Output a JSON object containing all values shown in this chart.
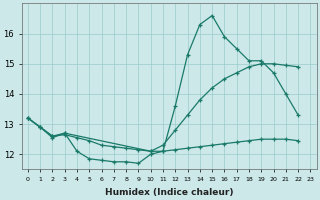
{
  "xlabel": "Humidex (Indice chaleur)",
  "bg_color": "#cce8e8",
  "grid_color": "#99cccc",
  "line_color": "#1a7a6a",
  "line1_x": [
    0,
    1,
    2,
    3,
    4,
    5,
    6,
    7,
    8,
    9,
    10,
    11,
    12,
    13,
    14,
    15,
    16,
    17,
    18,
    19,
    20,
    21,
    22
  ],
  "line1_y": [
    13.2,
    12.9,
    12.6,
    12.7,
    12.1,
    11.85,
    11.8,
    11.75,
    11.75,
    11.7,
    12.0,
    12.1,
    13.6,
    15.3,
    16.3,
    16.6,
    15.9,
    15.5,
    15.1,
    15.1,
    14.7,
    14.0,
    13.3
  ],
  "line2_x": [
    0,
    1,
    2,
    3,
    4,
    5,
    6,
    7,
    8,
    9,
    10,
    11,
    12,
    13,
    14,
    15,
    16,
    17,
    18,
    19,
    20,
    21,
    22
  ],
  "line2_y": [
    13.2,
    12.9,
    12.6,
    12.65,
    12.55,
    12.45,
    12.3,
    12.25,
    12.2,
    12.15,
    12.1,
    12.1,
    12.15,
    12.2,
    12.25,
    12.3,
    12.35,
    12.4,
    12.45,
    12.5,
    12.5,
    12.5,
    12.45
  ],
  "line3_x": [
    0,
    1,
    2,
    3,
    10,
    11,
    12,
    13,
    14,
    15,
    16,
    17,
    18,
    19,
    20,
    21,
    22
  ],
  "line3_y": [
    13.2,
    12.9,
    12.55,
    12.7,
    12.1,
    12.3,
    12.8,
    13.3,
    13.8,
    14.2,
    14.5,
    14.7,
    14.9,
    15.0,
    15.0,
    14.95,
    14.9
  ],
  "ylim": [
    11.5,
    17.0
  ],
  "xlim": [
    -0.5,
    23.5
  ],
  "yticks": [
    12,
    13,
    14,
    15,
    16
  ],
  "xticks": [
    0,
    1,
    2,
    3,
    4,
    5,
    6,
    7,
    8,
    9,
    10,
    11,
    12,
    13,
    14,
    15,
    16,
    17,
    18,
    19,
    20,
    21,
    22,
    23
  ]
}
